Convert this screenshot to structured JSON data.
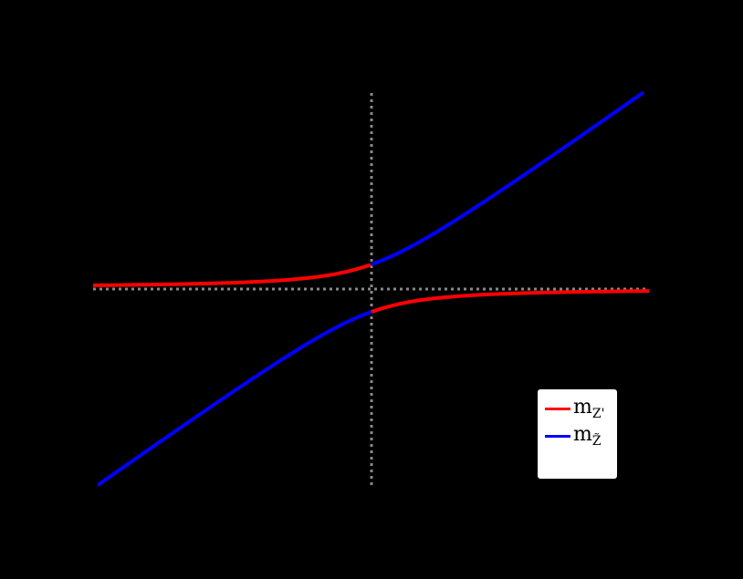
{
  "chart_data": {
    "type": "line",
    "title": "",
    "xlabel": "",
    "ylabel": "",
    "grid": false,
    "legend_position": "lower right",
    "background": "#000000",
    "reference_lines": [
      {
        "orientation": "vertical",
        "value": 0,
        "style": "dotted",
        "color": "#888888"
      },
      {
        "orientation": "horizontal",
        "value": 0,
        "style": "dotted",
        "color": "#888888"
      }
    ],
    "description": "Avoided level crossing: two mass eigenvalue branches; color identity swaps at x=0",
    "x": [
      -1.0,
      -0.8,
      -0.6,
      -0.4,
      -0.2,
      0.0,
      0.2,
      0.4,
      0.6,
      0.8,
      1.0
    ],
    "series": [
      {
        "name": "m_Z'",
        "color": "#ff0000",
        "segments": [
          {
            "branch": "upper",
            "x": [
              -1.0,
              -0.8,
              -0.6,
              -0.4,
              -0.2,
              0.0
            ],
            "y": [
              0.011,
              0.013,
              0.018,
              0.026,
              0.046,
              0.1
            ]
          },
          {
            "branch": "lower",
            "x": [
              0.0,
              0.2,
              0.4,
              0.6,
              0.8,
              1.0
            ],
            "y": [
              -0.1,
              -0.046,
              -0.026,
              -0.018,
              -0.013,
              -0.011
            ]
          }
        ]
      },
      {
        "name": "m_Z̃",
        "color": "#0000ff",
        "segments": [
          {
            "branch": "lower",
            "x": [
              -1.0,
              -0.8,
              -0.6,
              -0.4,
              -0.2,
              0.0
            ],
            "y": [
              -0.85,
              -0.683,
              -0.518,
              -0.355,
              -0.2,
              -0.1
            ]
          },
          {
            "branch": "upper",
            "x": [
              0.0,
              0.2,
              0.4,
              0.6,
              0.8,
              1.0
            ],
            "y": [
              0.1,
              0.2,
              0.355,
              0.518,
              0.683,
              0.85
            ]
          }
        ]
      }
    ],
    "xlim": [
      -1.0,
      1.0
    ],
    "ylim": [
      -0.85,
      0.85
    ]
  },
  "legend": {
    "items": [
      {
        "label": "m",
        "sub": "Z'",
        "color": "#ff0000"
      },
      {
        "label": "m",
        "sub": "Z̃",
        "color": "#0000ff"
      }
    ]
  }
}
